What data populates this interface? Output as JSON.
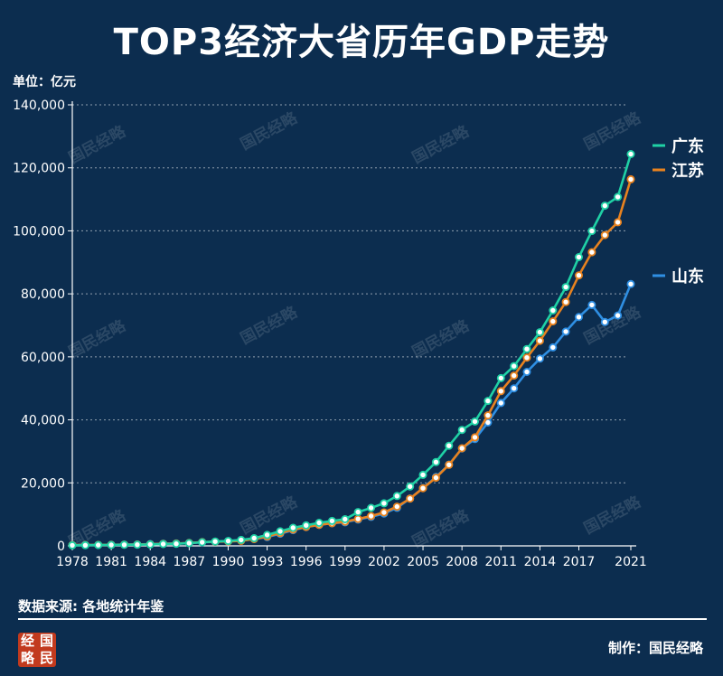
{
  "title": "TOP3经济大省历年GDP走势",
  "unit_label": "单位：亿元",
  "source_text": "数据来源: 各地统计年鉴",
  "credit_text": "制作：国民经略",
  "logo_chars": [
    "经",
    "国",
    "略",
    "民"
  ],
  "watermark_text": "国民经略",
  "colors": {
    "background": "#0c2d4f",
    "guangdong": "#1fd1a5",
    "jiangsu": "#e8821f",
    "shandong": "#2f8fe3"
  },
  "chart_data": {
    "type": "line",
    "x": [
      1978,
      1979,
      1980,
      1981,
      1982,
      1983,
      1984,
      1985,
      1986,
      1987,
      1988,
      1989,
      1990,
      1991,
      1992,
      1993,
      1994,
      1995,
      1996,
      1997,
      1998,
      1999,
      2000,
      2001,
      2002,
      2003,
      2004,
      2005,
      2006,
      2007,
      2008,
      2009,
      2010,
      2011,
      2012,
      2013,
      2014,
      2015,
      2016,
      2017,
      2018,
      2019,
      2020,
      2021
    ],
    "x_tick_labels": [
      "1978",
      "1981",
      "1984",
      "1987",
      "1990",
      "1993",
      "1996",
      "1999",
      "2002",
      "2005",
      "2008",
      "2011",
      "2014",
      "2017",
      "2021"
    ],
    "y_tick_labels": [
      "0",
      "20,000",
      "40,000",
      "60,000",
      "80,000",
      "100,000",
      "120,000",
      "140,000"
    ],
    "ylim": [
      0,
      140000
    ],
    "grid": true,
    "legend_position": "right",
    "series": [
      {
        "name": "广东",
        "values": [
          186,
          210,
          250,
          290,
          340,
          370,
          460,
          580,
          670,
          850,
          1160,
          1380,
          1560,
          1890,
          2450,
          3470,
          4620,
          5730,
          6520,
          7320,
          7920,
          8460,
          10740,
          12040,
          13500,
          15840,
          18860,
          22560,
          26590,
          31780,
          36800,
          39480,
          46010,
          53250,
          57070,
          62470,
          67810,
          74730,
          82160,
          91650,
          99950,
          107990,
          110760,
          124370
        ],
        "color": "#1fd1a5"
      },
      {
        "name": "江苏",
        "values": [
          249,
          298,
          320,
          350,
          390,
          440,
          520,
          650,
          740,
          920,
          1210,
          1320,
          1420,
          1600,
          2140,
          2990,
          4060,
          5160,
          6000,
          6680,
          7200,
          7700,
          8550,
          9460,
          10610,
          12440,
          15000,
          18310,
          21640,
          25740,
          30980,
          34460,
          41430,
          49110,
          54060,
          59750,
          65090,
          71260,
          77390,
          85870,
          93210,
          98660,
          102720,
          116360
        ],
        "color": "#e8821f"
      },
      {
        "name": "山东",
        "values": [
          225,
          250,
          290,
          340,
          400,
          460,
          580,
          680,
          740,
          890,
          1120,
          1290,
          1510,
          1810,
          2200,
          2780,
          3840,
          5000,
          5960,
          6650,
          7160,
          7490,
          8340,
          9200,
          10280,
          12080,
          15020,
          18370,
          21850,
          25780,
          30930,
          33900,
          39170,
          45360,
          50010,
          55230,
          59430,
          63000,
          68020,
          72630,
          76470,
          71070,
          73130,
          83100
        ],
        "color": "#2f8fe3"
      }
    ]
  }
}
